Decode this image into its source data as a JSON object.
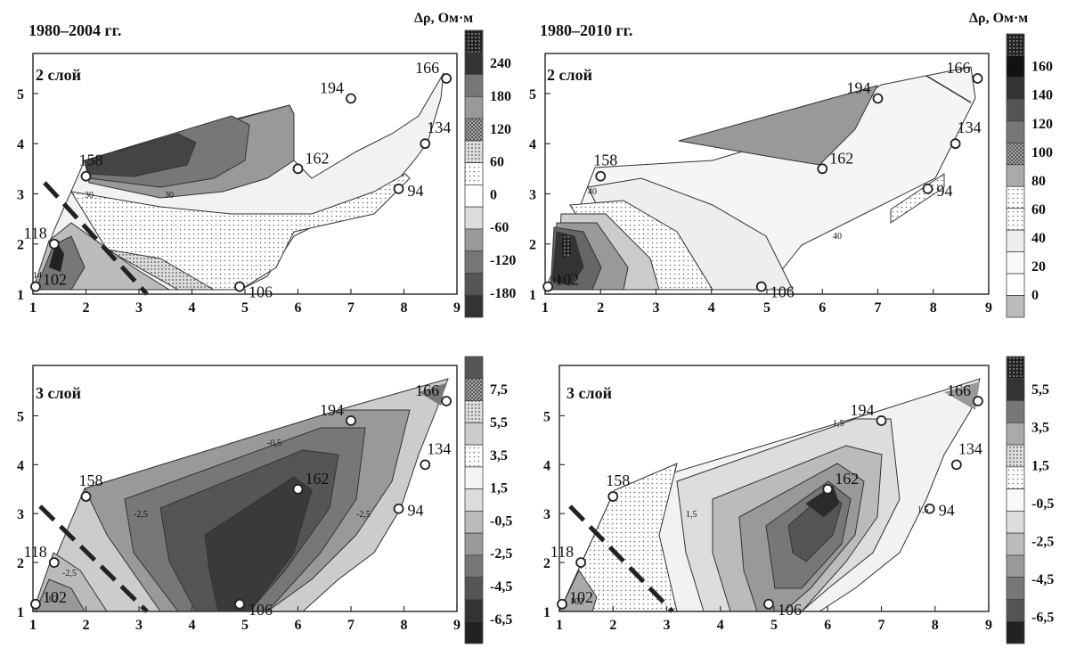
{
  "chart_data": [
    {
      "type": "contour",
      "period": "1980–2004 гг.",
      "layer": "2 слой",
      "cbar_title": "Δρ, Ом·м",
      "cbar_ticks": [
        "240",
        "180",
        "120",
        "60",
        "0",
        "-60",
        "-120",
        "-180"
      ],
      "x_ticks": [
        "1",
        "2",
        "3",
        "4",
        "5",
        "6",
        "7",
        "8",
        "9"
      ],
      "y_ticks": [
        "5",
        "4",
        "3",
        "2",
        "1"
      ],
      "contour_labels": [
        "30",
        "30",
        "14"
      ],
      "stations": [
        {
          "id": "166",
          "x": 8.8,
          "y": 5.3
        },
        {
          "id": "194",
          "x": 7.0,
          "y": 4.9
        },
        {
          "id": "134",
          "x": 8.4,
          "y": 4.0
        },
        {
          "id": "158",
          "x": 2.0,
          "y": 3.35
        },
        {
          "id": "162",
          "x": 6.0,
          "y": 3.5
        },
        {
          "id": "94",
          "x": 7.9,
          "y": 3.1
        },
        {
          "id": "118",
          "x": 1.4,
          "y": 2.0
        },
        {
          "id": "106",
          "x": 4.9,
          "y": 1.15
        },
        {
          "id": "102",
          "x": 1.05,
          "y": 1.15
        }
      ]
    },
    {
      "type": "contour",
      "period": "1980–2010 гг.",
      "layer": "2 слой",
      "cbar_title": "Δρ, Ом·м",
      "cbar_ticks": [
        "160",
        "140",
        "120",
        "100",
        "80",
        "60",
        "40",
        "20",
        "0"
      ],
      "x_ticks": [
        "1",
        "2",
        "3",
        "4",
        "5",
        "6",
        "7",
        "8",
        "9"
      ],
      "y_ticks": [
        "5",
        "4",
        "3",
        "2",
        "1"
      ],
      "contour_labels": [
        "40",
        "40",
        "102"
      ],
      "stations": [
        {
          "id": "166",
          "x": 8.8,
          "y": 5.3
        },
        {
          "id": "194",
          "x": 7.0,
          "y": 4.9
        },
        {
          "id": "134",
          "x": 8.4,
          "y": 4.0
        },
        {
          "id": "158",
          "x": 2.0,
          "y": 3.35
        },
        {
          "id": "162",
          "x": 6.0,
          "y": 3.5
        },
        {
          "id": "94",
          "x": 7.9,
          "y": 3.1
        },
        {
          "id": "106",
          "x": 4.9,
          "y": 1.15
        },
        {
          "id": "102",
          "x": 1.05,
          "y": 1.15
        }
      ]
    },
    {
      "type": "contour",
      "period": "",
      "layer": "3 слой",
      "cbar_title": "",
      "cbar_ticks": [
        "7,5",
        "5,5",
        "3,5",
        "1,5",
        "-0,5",
        "-2,5",
        "-4,5",
        "-6,5"
      ],
      "x_ticks": [
        "1",
        "2",
        "3",
        "4",
        "5",
        "6",
        "7",
        "8",
        "9"
      ],
      "y_ticks": [
        "5",
        "4",
        "3",
        "2",
        "1"
      ],
      "contour_labels": [
        "-0,5",
        "-2,5",
        "-2,5",
        "-2,5",
        "102"
      ],
      "stations": [
        {
          "id": "166",
          "x": 8.8,
          "y": 5.3
        },
        {
          "id": "194",
          "x": 7.0,
          "y": 4.9
        },
        {
          "id": "134",
          "x": 8.4,
          "y": 4.0
        },
        {
          "id": "158",
          "x": 2.0,
          "y": 3.35
        },
        {
          "id": "162",
          "x": 6.0,
          "y": 3.5
        },
        {
          "id": "94",
          "x": 7.9,
          "y": 3.1
        },
        {
          "id": "118",
          "x": 1.4,
          "y": 2.0
        },
        {
          "id": "106",
          "x": 4.9,
          "y": 1.15
        },
        {
          "id": "102",
          "x": 1.05,
          "y": 1.15
        }
      ]
    },
    {
      "type": "contour",
      "period": "",
      "layer": "3 слой",
      "cbar_title": "",
      "cbar_ticks": [
        "5,5",
        "3,5",
        "1,5",
        "-0,5",
        "-2,5",
        "-4,5",
        "-6,5"
      ],
      "x_ticks": [
        "1",
        "2",
        "3",
        "4",
        "5",
        "6",
        "7",
        "8",
        "9"
      ],
      "y_ticks": [
        "5",
        "4",
        "3",
        "2",
        "1"
      ],
      "contour_labels": [
        "1,5",
        "1,5",
        "1,5",
        "102"
      ],
      "stations": [
        {
          "id": "166",
          "x": 8.8,
          "y": 5.3
        },
        {
          "id": "194",
          "x": 7.0,
          "y": 4.9
        },
        {
          "id": "134",
          "x": 8.4,
          "y": 4.0
        },
        {
          "id": "158",
          "x": 2.0,
          "y": 3.35
        },
        {
          "id": "162",
          "x": 6.0,
          "y": 3.5
        },
        {
          "id": "94",
          "x": 7.9,
          "y": 3.1
        },
        {
          "id": "118",
          "x": 1.4,
          "y": 2.0
        },
        {
          "id": "106",
          "x": 4.9,
          "y": 1.15
        },
        {
          "id": "102",
          "x": 1.05,
          "y": 1.15
        }
      ]
    }
  ]
}
